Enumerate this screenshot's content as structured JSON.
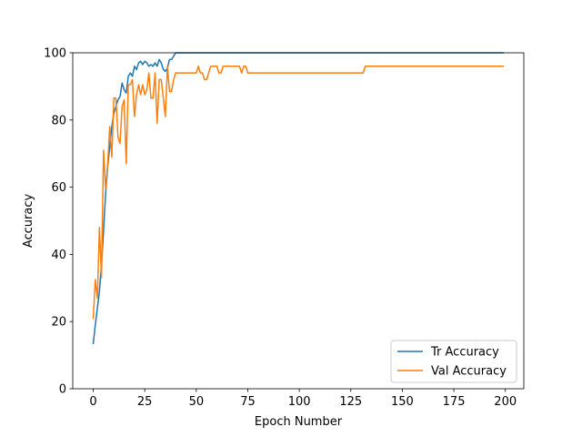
{
  "chart_data": {
    "type": "line",
    "title": "",
    "xlabel": "Epoch Number",
    "ylabel": "Accuracy",
    "xlim": [
      -9.95,
      208.95
    ],
    "ylim": [
      0,
      100
    ],
    "xticks": [
      0,
      25,
      50,
      75,
      100,
      125,
      150,
      175,
      200
    ],
    "yticks": [
      0,
      20,
      40,
      60,
      80,
      100
    ],
    "grid": false,
    "legend_position": "lower right",
    "series": [
      {
        "name": "Tr Accuracy",
        "color": "#1f77b4",
        "x": [
          0,
          1,
          2,
          3,
          4,
          5,
          6,
          7,
          8,
          9,
          10,
          11,
          12,
          13,
          14,
          15,
          16,
          17,
          18,
          19,
          20,
          21,
          22,
          23,
          24,
          25,
          26,
          27,
          28,
          29,
          30,
          31,
          32,
          33,
          34,
          35,
          36,
          37,
          38,
          39,
          40,
          41,
          42,
          43,
          44,
          45,
          46,
          47,
          48,
          49,
          50,
          199
        ],
        "y": [
          13.5,
          19,
          24,
          29,
          37,
          47,
          58,
          66,
          72,
          78,
          82,
          84,
          86,
          87,
          91,
          89,
          88,
          93,
          94,
          93,
          96,
          95,
          97,
          97.5,
          96.5,
          97.5,
          97,
          96,
          96.5,
          96,
          97,
          96,
          98,
          97,
          95,
          94.5,
          95.5,
          98,
          98,
          99,
          100,
          100,
          100,
          100,
          100,
          100,
          100,
          100,
          100,
          100,
          100,
          100
        ]
      },
      {
        "name": "Val Accuracy",
        "color": "#ff7f0e",
        "x": [
          0,
          1,
          2,
          3,
          4,
          5,
          6,
          7,
          8,
          9,
          10,
          11,
          12,
          13,
          14,
          15,
          16,
          17,
          18,
          19,
          20,
          21,
          22,
          23,
          24,
          25,
          26,
          27,
          28,
          29,
          30,
          31,
          32,
          33,
          34,
          35,
          36,
          37,
          38,
          39,
          40,
          41,
          42,
          43,
          44,
          45,
          46,
          47,
          48,
          49,
          50,
          51,
          52,
          53,
          54,
          55,
          56,
          57,
          58,
          59,
          60,
          61,
          62,
          63,
          64,
          65,
          66,
          67,
          68,
          69,
          70,
          71,
          72,
          73,
          74,
          75,
          76,
          77,
          78,
          131,
          132,
          199
        ],
        "y": [
          21,
          32.5,
          27,
          48,
          33,
          71,
          59.5,
          67,
          78,
          69,
          86.5,
          86.5,
          75,
          73,
          84,
          86,
          67,
          90.5,
          90.5,
          92,
          81,
          87.5,
          90.5,
          87.5,
          90.5,
          87.5,
          89,
          94,
          86.5,
          86.5,
          94,
          79,
          92,
          92,
          86.5,
          81,
          96,
          88.5,
          88.5,
          92,
          94,
          94,
          94,
          94,
          94,
          94,
          94,
          94,
          94,
          94,
          94,
          96,
          94,
          94,
          92,
          92,
          94,
          96,
          96,
          96,
          96,
          94,
          94,
          96,
          96,
          96,
          96,
          96,
          96,
          96,
          96,
          96,
          94,
          96,
          96,
          94,
          94,
          94,
          94,
          94,
          96,
          96
        ]
      }
    ]
  }
}
